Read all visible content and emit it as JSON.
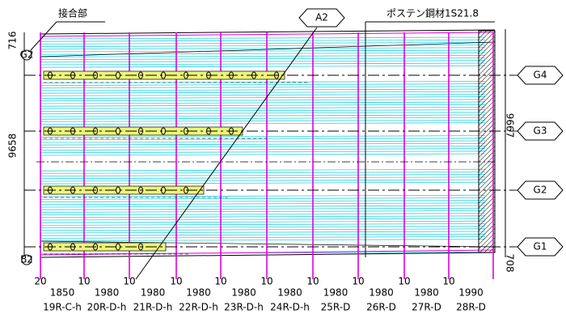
{
  "callouts": {
    "joint": "接合部",
    "tendon": "ポステン鋼材1S21.8",
    "abutment": "A2"
  },
  "girders": [
    "G4",
    "G3",
    "G2",
    "G1"
  ],
  "markers": [
    "G2",
    "B2"
  ],
  "dimensions": {
    "left_top": "716",
    "left_height": "9658",
    "right_height": "9667",
    "right_bottom": "708"
  },
  "bottom": {
    "offsets": [
      "20",
      "10",
      "10",
      "10",
      "10",
      "10",
      "10",
      "10",
      "10",
      "10"
    ],
    "spans": [
      "1850",
      "1980",
      "1980",
      "1980",
      "1980",
      "1980",
      "1980",
      "1980",
      "1980",
      "1990"
    ],
    "segments": [
      "19R-C-h",
      "20R-D-h",
      "21R-D-h",
      "22R-D-h",
      "23R-D-h",
      "24R-D-h",
      "25R-D",
      "26R-D",
      "27R-D",
      "28R-D"
    ]
  }
}
